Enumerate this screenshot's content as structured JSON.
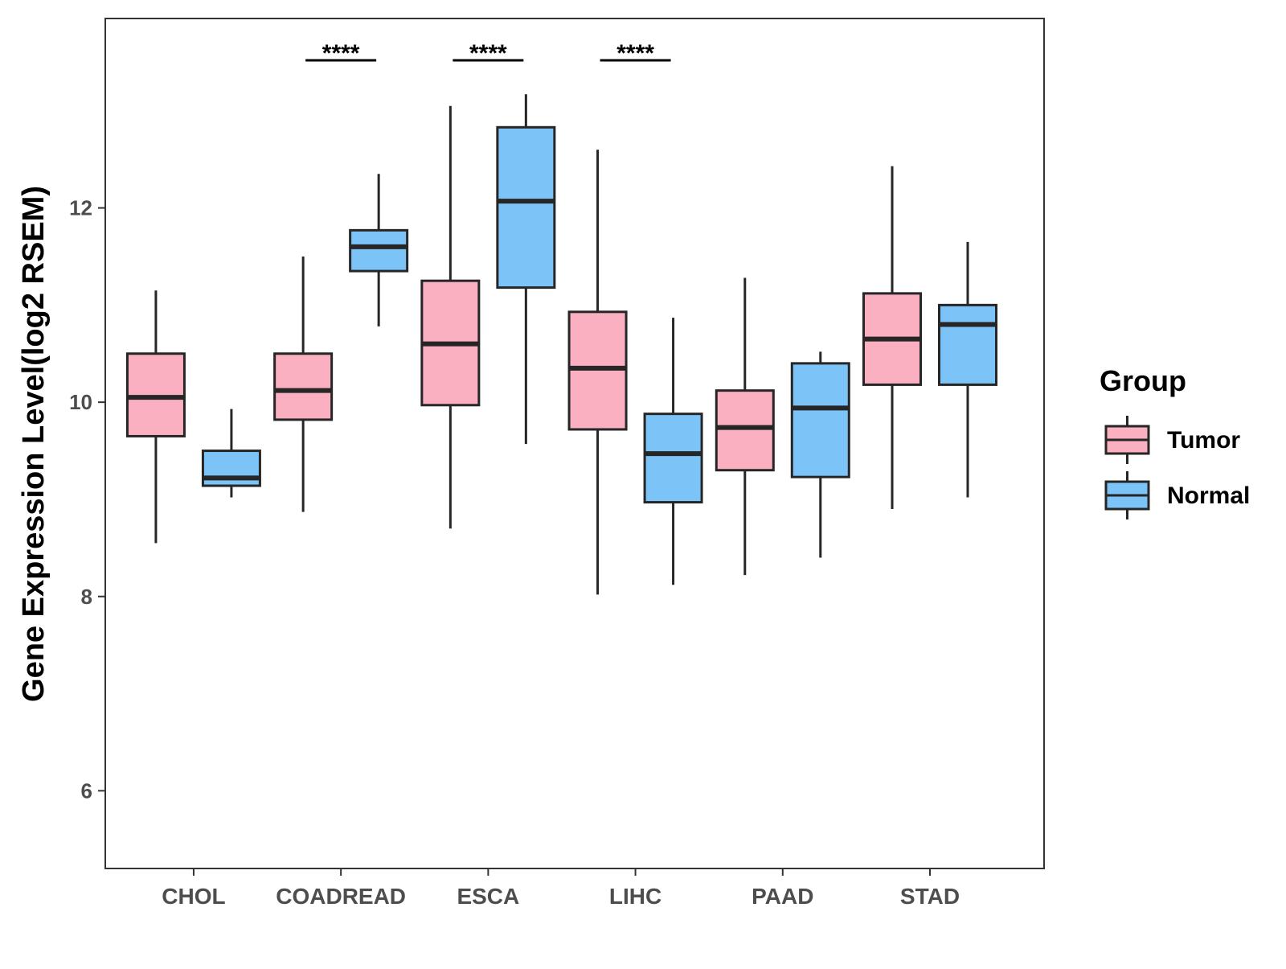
{
  "chart_data": {
    "type": "boxplot",
    "title": "",
    "xlabel": "",
    "ylabel": "Gene Expression Level(log2 RSEM)",
    "ylim": [
      5.2,
      13.95
    ],
    "yticks": [
      6,
      8,
      10,
      12
    ],
    "categories": [
      "CHOL",
      "COADREAD",
      "ESCA",
      "LIHC",
      "PAAD",
      "STAD"
    ],
    "series": [
      {
        "name": "Tumor",
        "color": "#FBB0C2",
        "boxes": [
          {
            "min": 8.55,
            "q1": 9.65,
            "median": 10.05,
            "q3": 10.5,
            "max": 11.15
          },
          {
            "min": 8.87,
            "q1": 9.82,
            "median": 10.12,
            "q3": 10.5,
            "max": 11.5
          },
          {
            "min": 8.7,
            "q1": 9.97,
            "median": 10.6,
            "q3": 11.25,
            "max": 13.05
          },
          {
            "min": 8.02,
            "q1": 9.72,
            "median": 10.35,
            "q3": 10.93,
            "max": 12.6
          },
          {
            "min": 8.22,
            "q1": 9.3,
            "median": 9.74,
            "q3": 10.12,
            "max": 11.28
          },
          {
            "min": 8.9,
            "q1": 10.18,
            "median": 10.65,
            "q3": 11.12,
            "max": 12.43
          }
        ]
      },
      {
        "name": "Normal",
        "color": "#7CC3F8",
        "boxes": [
          {
            "min": 9.02,
            "q1": 9.14,
            "median": 9.22,
            "q3": 9.5,
            "max": 9.93
          },
          {
            "min": 10.78,
            "q1": 11.35,
            "median": 11.6,
            "q3": 11.77,
            "max": 12.35
          },
          {
            "min": 9.57,
            "q1": 11.18,
            "median": 12.07,
            "q3": 12.83,
            "max": 13.17
          },
          {
            "min": 8.12,
            "q1": 8.97,
            "median": 9.47,
            "q3": 9.88,
            "max": 10.87
          },
          {
            "min": 8.4,
            "q1": 9.23,
            "median": 9.94,
            "q3": 10.4,
            "max": 10.52
          },
          {
            "min": 9.02,
            "q1": 10.18,
            "median": 10.8,
            "q3": 11.0,
            "max": 11.65
          }
        ]
      }
    ],
    "significance": [
      {
        "category": "CHOL",
        "label": ""
      },
      {
        "category": "COADREAD",
        "label": "****"
      },
      {
        "category": "ESCA",
        "label": "****"
      },
      {
        "category": "LIHC",
        "label": "****"
      },
      {
        "category": "PAAD",
        "label": ""
      },
      {
        "category": "STAD",
        "label": ""
      }
    ],
    "legend": {
      "title": "Group",
      "position": "right",
      "entries": [
        "Tumor",
        "Normal"
      ]
    }
  }
}
